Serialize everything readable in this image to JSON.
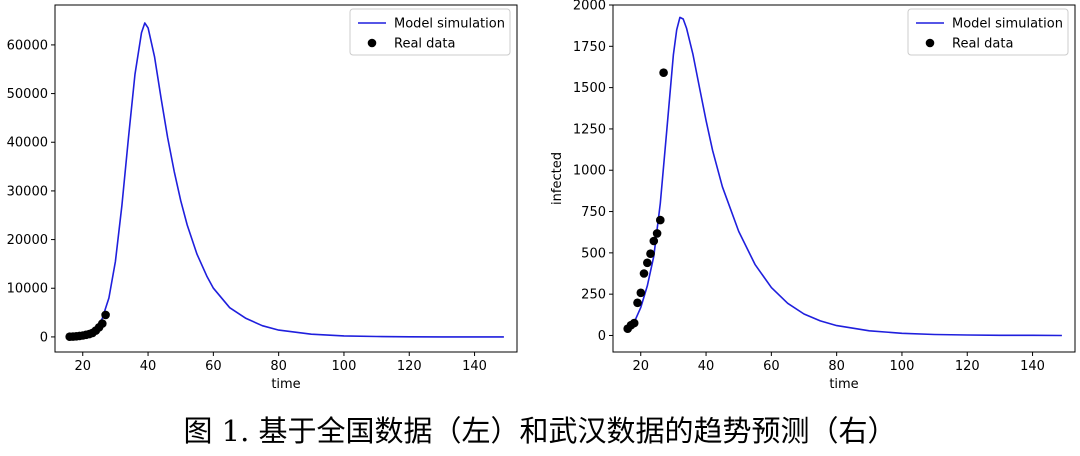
{
  "caption": "图 1. 基于全国数据（左）和武汉数据的趋势预测（右）",
  "chart_data": [
    {
      "type": "line",
      "title": "",
      "xlabel": "time",
      "ylabel": "",
      "xlim": [
        11.5,
        153
      ],
      "ylim": [
        -3100,
        68200
      ],
      "xticks": [
        20,
        40,
        60,
        80,
        100,
        120,
        140
      ],
      "yticks": [
        0,
        10000,
        20000,
        30000,
        40000,
        50000,
        60000
      ],
      "grid": false,
      "legend": "top-right",
      "colors": {
        "model": "#1f1fdd",
        "real": "#000000"
      },
      "series": [
        {
          "name": "Model simulation",
          "kind": "line",
          "x": [
            16,
            18,
            20,
            22,
            24,
            26,
            28,
            30,
            32,
            34,
            36,
            38,
            39,
            40,
            42,
            44,
            46,
            48,
            50,
            52,
            55,
            58,
            60,
            65,
            70,
            75,
            80,
            90,
            100,
            110,
            120,
            130,
            140,
            149
          ],
          "y": [
            0,
            150,
            380,
            800,
            1800,
            3800,
            8000,
            15500,
            27000,
            41000,
            54000,
            62500,
            64500,
            63500,
            57500,
            49000,
            41000,
            34000,
            28000,
            23000,
            17000,
            12500,
            10000,
            6000,
            3800,
            2300,
            1400,
            550,
            200,
            80,
            30,
            12,
            5,
            2
          ]
        },
        {
          "name": "Real data",
          "kind": "scatter",
          "x": [
            16,
            17,
            18,
            19,
            20,
            21,
            22,
            23,
            24,
            25,
            26,
            27
          ],
          "y": [
            45,
            62,
            121,
            198,
            291,
            440,
            571,
            830,
            1287,
            1975,
            2744,
            4515
          ]
        }
      ]
    },
    {
      "type": "line",
      "title": "",
      "xlabel": "time",
      "ylabel": "infected",
      "xlim": [
        11.5,
        153
      ],
      "ylim": [
        -100,
        2000
      ],
      "xticks": [
        20,
        40,
        60,
        80,
        100,
        120,
        140
      ],
      "yticks": [
        0,
        250,
        500,
        750,
        1000,
        1250,
        1500,
        1750,
        2000
      ],
      "grid": false,
      "legend": "top-right",
      "colors": {
        "model": "#1f1fdd",
        "real": "#000000"
      },
      "series": [
        {
          "name": "Model simulation",
          "kind": "line",
          "x": [
            16,
            18,
            20,
            22,
            24,
            26,
            28,
            30,
            31,
            32,
            33,
            34,
            36,
            38,
            40,
            42,
            45,
            50,
            55,
            60,
            65,
            70,
            75,
            80,
            90,
            100,
            110,
            120,
            130,
            140,
            149
          ],
          "y": [
            30,
            80,
            170,
            300,
            480,
            800,
            1250,
            1700,
            1850,
            1925,
            1915,
            1860,
            1700,
            1500,
            1300,
            1120,
            900,
            630,
            430,
            290,
            195,
            130,
            88,
            60,
            28,
            13,
            6,
            3,
            1,
            1,
            0
          ]
        },
        {
          "name": "Real data",
          "kind": "scatter",
          "x": [
            16,
            17,
            18,
            19,
            20,
            21,
            22,
            23,
            24,
            25,
            26,
            27
          ],
          "y": [
            41,
            62,
            75,
            198,
            258,
            375,
            440,
            495,
            572,
            618,
            698,
            1590
          ]
        }
      ]
    }
  ]
}
